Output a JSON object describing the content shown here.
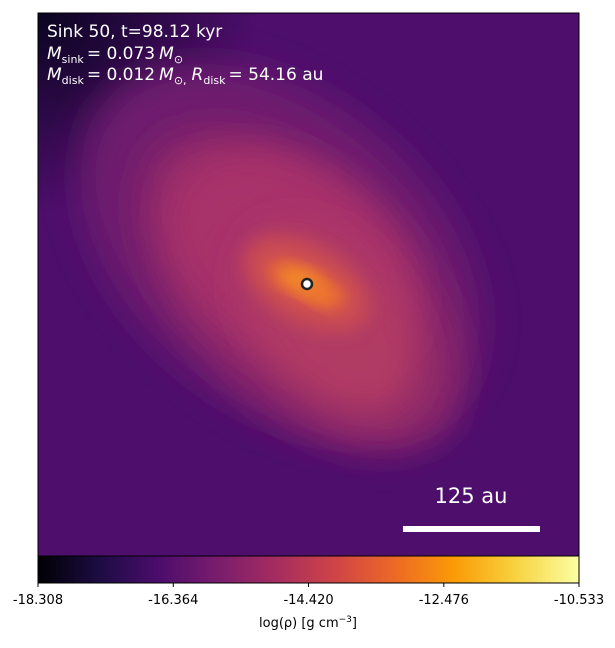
{
  "chart_data": {
    "type": "density-map",
    "title": "Sink 50, t=98.12 kyr",
    "sink_mass": {
      "symbol": "M",
      "subscript": "sink",
      "value": "= 0.073",
      "unit": "M",
      "unit_subscript": "⊙"
    },
    "disk_line": {
      "mass_symbol": "M",
      "mass_subscript": "disk",
      "mass_value": "= 0.012",
      "mass_unit": "M",
      "mass_unit_subscript": "⊙,",
      "radius_symbol": "R",
      "radius_subscript": "disk",
      "radius_value": "= 54.16 au"
    },
    "scale_bar": "125 au",
    "colormap": "inferno",
    "colorbar": {
      "label": "log(ρ) [g cm",
      "label_exponent": "−3",
      "label_end": "]",
      "lim": [
        -18.308,
        -10.533
      ],
      "ticks": [
        -18.308,
        -16.364,
        {
          "value": -14.42,
          "label": "-14.420"
        },
        -12.476,
        -10.533
      ]
    }
  }
}
